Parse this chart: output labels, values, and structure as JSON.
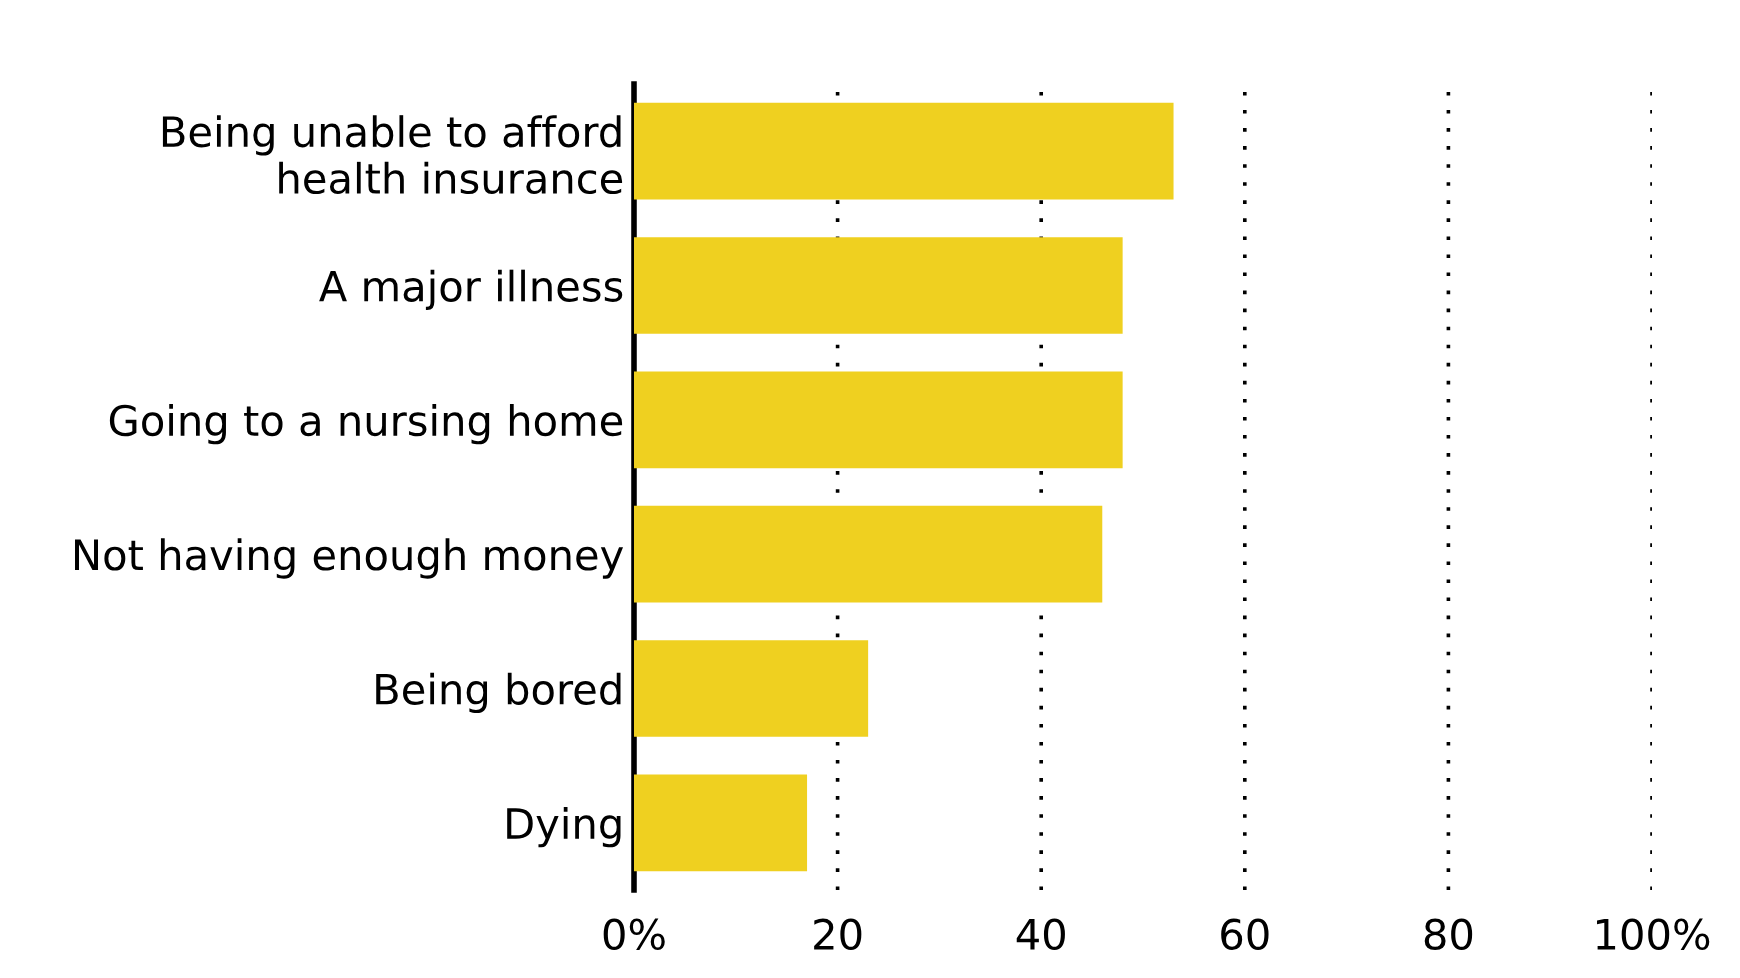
{
  "chart_data": {
    "type": "bar",
    "orientation": "horizontal",
    "categories": [
      "Being unable to afford\nhealth insurance",
      "A major illness",
      "Going to a nursing home",
      "Not having enough money",
      "Being bored",
      "Dying"
    ],
    "values": [
      53,
      48,
      48,
      46,
      23,
      17
    ],
    "color": "#efd020",
    "xlim": [
      0,
      100
    ],
    "xticks": [
      {
        "value": 0,
        "label": "0%"
      },
      20,
      40,
      60,
      80,
      {
        "value": 100,
        "label": "100%"
      }
    ],
    "grid": "x",
    "line_style": "dotted"
  }
}
